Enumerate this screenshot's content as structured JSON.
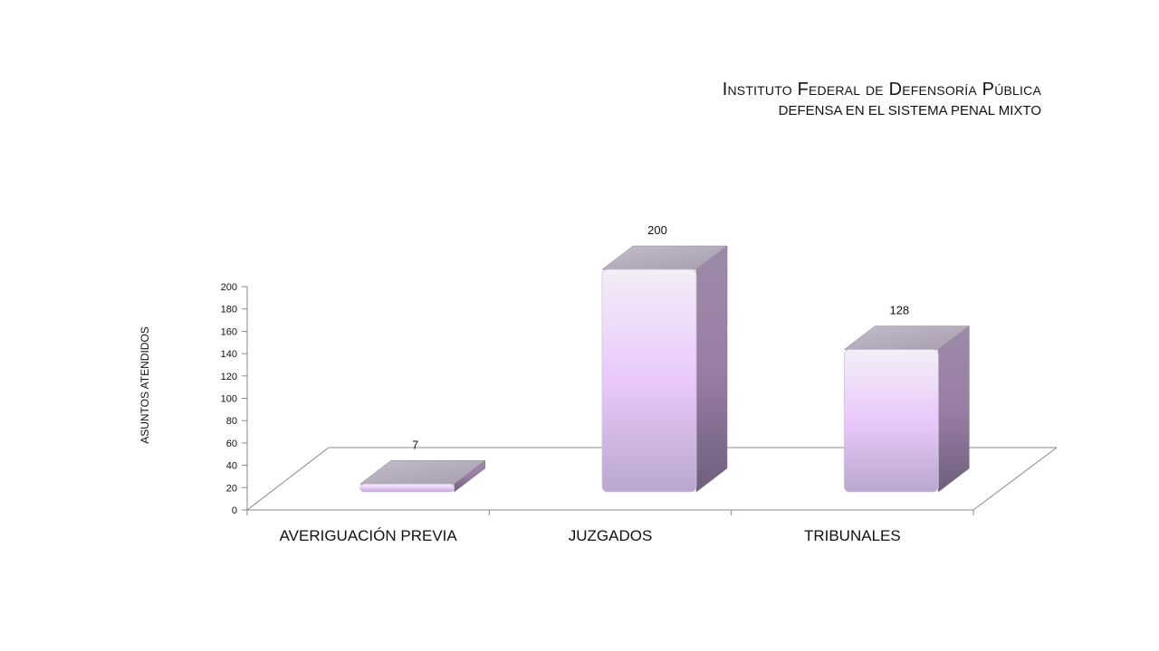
{
  "header": {
    "title": "Instituto Federal de Defensoría Pública",
    "subtitle": "DEFENSA EN EL SISTEMA PENAL MIXTO"
  },
  "chart_data": {
    "type": "bar",
    "title": "Instituto Federal de Defensoría Pública",
    "subtitle": "DEFENSA EN EL SISTEMA PENAL MIXTO",
    "categories": [
      "AVERIGUACIÓN PREVIA",
      "JUZGADOS",
      "TRIBUNALES"
    ],
    "values": [
      7,
      200,
      128
    ],
    "data_labels": [
      "7",
      "200",
      "128"
    ],
    "xlabel": "",
    "ylabel": "ASUNTOS ATENDIDOS",
    "ylim": [
      0,
      200
    ],
    "yticks": [
      0,
      20,
      40,
      60,
      80,
      100,
      120,
      140,
      160,
      180,
      200
    ],
    "grid": false,
    "legend": "none",
    "style": "3d-column",
    "colors": {
      "front_light": "#f3eef6",
      "front_mid": "#e9c9fb",
      "front_dark": "#b9a7cf",
      "side": "#8f7a9e",
      "top": "#b2a9b9"
    }
  }
}
